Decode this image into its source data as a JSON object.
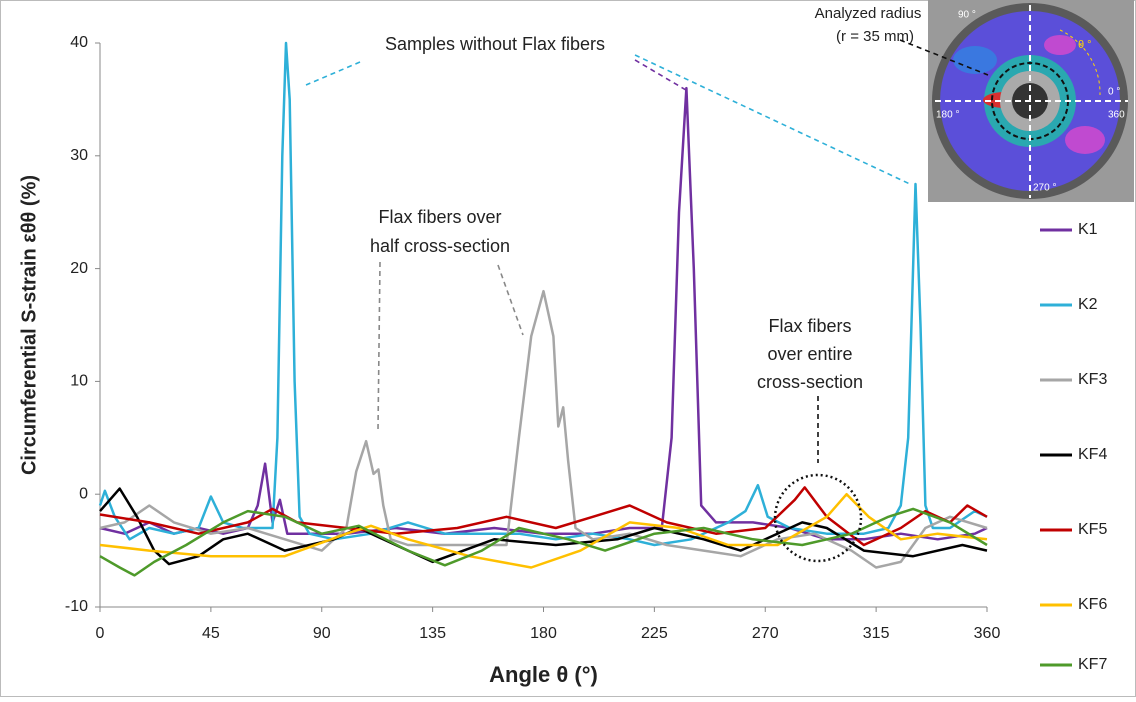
{
  "chart_data": {
    "type": "line",
    "xlabel": "Angle θ (°)",
    "ylabel": "Circumferential S-strain εθθ (%)",
    "xlim": [
      0,
      360
    ],
    "ylim": [
      -10,
      40
    ],
    "xticks": [
      0,
      45,
      90,
      135,
      180,
      225,
      270,
      315,
      360
    ],
    "yticks": [
      -10,
      0,
      10,
      20,
      30,
      40
    ],
    "legend": "right",
    "annotations": [
      {
        "lines": [
          "Samples without Flax fibers"
        ]
      },
      {
        "lines": [
          "Flax fibers over",
          "half cross-section"
        ]
      },
      {
        "lines": [
          "Flax fibers",
          "over entire",
          "cross-section"
        ]
      },
      {
        "lines": [
          "Analyzed radius",
          "(r = 35 mm)"
        ]
      }
    ],
    "inset_labels": [
      "90 °",
      "0 °",
      "180 °",
      "360",
      "270 °",
      "θ °"
    ],
    "series": [
      {
        "name": "K1",
        "color": "#7030a0",
        "x": [
          0,
          10,
          20,
          30,
          40,
          50,
          60,
          64,
          67,
          70,
          73,
          76,
          85,
          100,
          120,
          140,
          160,
          180,
          200,
          215,
          228,
          232,
          235,
          238,
          241,
          244,
          250,
          265,
          280,
          295,
          310,
          325,
          340,
          355,
          360
        ],
        "values": [
          -3,
          -3.5,
          -2.5,
          -3.5,
          -3,
          -3.5,
          -3,
          -1,
          2.7,
          -2.5,
          -0.5,
          -3.5,
          -3.5,
          -3.5,
          -3,
          -3.5,
          -3,
          -3.5,
          -3.5,
          -3,
          -3,
          5,
          25,
          36,
          20,
          -1,
          -2.5,
          -2.5,
          -3,
          -4,
          -4,
          -3.5,
          -4,
          -3.5,
          -3
        ]
      },
      {
        "name": "K2",
        "color": "#2eb0d8",
        "x": [
          0,
          2,
          6,
          12,
          20,
          30,
          40,
          45,
          50,
          58,
          66,
          70,
          72,
          74,
          75.5,
          77,
          79,
          81,
          85,
          95,
          110,
          125,
          140,
          155,
          170,
          185,
          200,
          215,
          225,
          240,
          255,
          262,
          267,
          271,
          280,
          295,
          310,
          320,
          325,
          328,
          331,
          333,
          335,
          338,
          345,
          355,
          360
        ],
        "values": [
          -1,
          0.3,
          -2,
          -4,
          -3,
          -3.5,
          -3,
          -0.2,
          -2.5,
          -3,
          -3,
          -3,
          5,
          30,
          40,
          35,
          10,
          -2,
          -3.5,
          -4,
          -3.5,
          -2.5,
          -3.5,
          -3.5,
          -3.5,
          -4,
          -3.5,
          -4,
          -4.5,
          -4,
          -2.5,
          -1.5,
          0.8,
          -2,
          -3,
          -3.5,
          -3.5,
          -3,
          -1,
          5,
          27.5,
          15,
          -1,
          -3,
          -3,
          -1.5,
          -2
        ]
      },
      {
        "name": "KF3",
        "color": "#a6a6a6",
        "x": [
          0,
          10,
          20,
          30,
          45,
          60,
          75,
          90,
          100,
          104,
          108,
          111,
          113,
          115,
          118,
          125,
          140,
          155,
          165,
          170,
          175,
          180,
          184,
          186,
          188,
          190,
          193,
          200,
          215,
          230,
          245,
          260,
          275,
          290,
          305,
          315,
          325,
          335,
          345,
          360
        ],
        "values": [
          -3,
          -2.5,
          -1,
          -2.5,
          -3.5,
          -3,
          -4,
          -5,
          -3,
          2,
          4.7,
          1.8,
          2.2,
          -1,
          -4,
          -4.5,
          -4.5,
          -4.5,
          -4.5,
          5,
          14,
          18,
          14,
          6,
          7.7,
          3,
          -3,
          -4,
          -3.5,
          -4.5,
          -5,
          -5.5,
          -4,
          -3.5,
          -5,
          -6.5,
          -6,
          -3,
          -2,
          -3
        ]
      },
      {
        "name": "KF4",
        "color": "#000000",
        "x": [
          0,
          8,
          15,
          22,
          28,
          40,
          50,
          60,
          75,
          95,
          105,
          120,
          135,
          160,
          185,
          210,
          225,
          245,
          260,
          270,
          285,
          295,
          310,
          330,
          350,
          360
        ],
        "values": [
          -1.5,
          0.5,
          -2,
          -5,
          -6.2,
          -5.5,
          -4,
          -3.5,
          -5,
          -4,
          -3,
          -4.5,
          -6,
          -4,
          -4.5,
          -4,
          -3,
          -4,
          -5,
          -4,
          -2.5,
          -3,
          -5,
          -5.5,
          -4.5,
          -5
        ]
      },
      {
        "name": "KF5",
        "color": "#c00000",
        "x": [
          0,
          20,
          40,
          60,
          70,
          80,
          100,
          120,
          145,
          165,
          185,
          200,
          215,
          230,
          250,
          270,
          282,
          286,
          295,
          310,
          325,
          335,
          345,
          352,
          360
        ],
        "values": [
          -1.8,
          -2.5,
          -3.5,
          -2.5,
          -1.3,
          -2.5,
          -3,
          -3.5,
          -3,
          -2,
          -3,
          -2,
          -1,
          -2.5,
          -3.5,
          -3,
          -0.5,
          0.6,
          -2,
          -4.5,
          -3,
          -1.5,
          -2.5,
          -1,
          -2
        ]
      },
      {
        "name": "KF6",
        "color": "#ffc000",
        "x": [
          0,
          20,
          45,
          75,
          100,
          110,
          125,
          150,
          175,
          195,
          215,
          235,
          255,
          275,
          295,
          303,
          312,
          325,
          340,
          360
        ],
        "values": [
          -4.5,
          -5,
          -5.5,
          -5.5,
          -3.5,
          -2.8,
          -4,
          -5.5,
          -6.5,
          -5,
          -2.5,
          -3,
          -4.5,
          -4.5,
          -2,
          0,
          -2,
          -4,
          -3.5,
          -4
        ]
      },
      {
        "name": "KF7",
        "color": "#4e9a2a",
        "x": [
          0,
          8,
          14,
          22,
          35,
          50,
          60,
          75,
          90,
          105,
          125,
          140,
          155,
          170,
          190,
          205,
          225,
          245,
          265,
          285,
          305,
          320,
          330,
          345,
          360
        ],
        "values": [
          -5.5,
          -6.5,
          -7.2,
          -6,
          -4.5,
          -2.5,
          -1.5,
          -2,
          -3.5,
          -2.8,
          -5,
          -6.3,
          -5,
          -3,
          -4,
          -5,
          -3.5,
          -3,
          -4,
          -4.5,
          -3.5,
          -2,
          -1.3,
          -2.5,
          -4.5
        ]
      }
    ]
  }
}
